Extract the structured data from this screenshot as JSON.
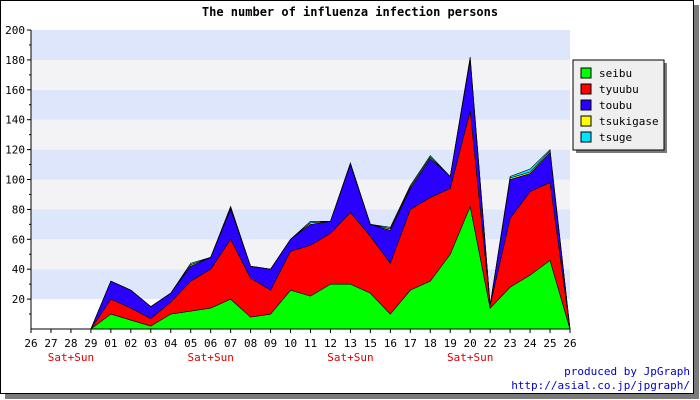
{
  "chart_data": {
    "type": "area",
    "stacked": true,
    "title": "The number of influenza infection persons",
    "categories": [
      "26",
      "27",
      "28",
      "29",
      "01",
      "02",
      "03",
      "04",
      "05",
      "06",
      "07",
      "08",
      "09",
      "10",
      "11",
      "12",
      "13",
      "15",
      "16",
      "17",
      "18",
      "19",
      "20",
      "22",
      "23",
      "24",
      "25",
      "26"
    ],
    "weekend_labels": [
      "Sat+Sun",
      "Sat+Sun",
      "Sat+Sun",
      "Sat+Sun"
    ],
    "weekend_under": [
      "28",
      "06",
      "13",
      "20"
    ],
    "ylim": [
      0,
      200
    ],
    "yticks": [
      20,
      40,
      60,
      80,
      100,
      120,
      140,
      160,
      180,
      200
    ],
    "grid": true,
    "legend_position": "right",
    "series": [
      {
        "name": "seibu",
        "color": "#00ff00",
        "values": [
          0,
          0,
          0,
          0,
          10,
          6,
          2,
          10,
          12,
          14,
          20,
          8,
          10,
          26,
          22,
          30,
          30,
          24,
          10,
          26,
          32,
          50,
          82,
          14,
          28,
          36,
          46,
          0
        ]
      },
      {
        "name": "tyuubu",
        "color": "#ff0000",
        "values": [
          0,
          0,
          0,
          0,
          10,
          8,
          5,
          8,
          20,
          26,
          40,
          26,
          16,
          26,
          34,
          34,
          48,
          38,
          34,
          54,
          56,
          44,
          64,
          2,
          46,
          56,
          52,
          0
        ]
      },
      {
        "name": "toubu",
        "color": "#2a00ff",
        "values": [
          0,
          0,
          0,
          0,
          12,
          12,
          8,
          6,
          10,
          8,
          20,
          8,
          14,
          8,
          14,
          8,
          32,
          8,
          22,
          14,
          26,
          8,
          34,
          0,
          26,
          12,
          20,
          0
        ]
      },
      {
        "name": "tsukigase",
        "color": "#ffff00",
        "values": [
          0,
          0,
          0,
          0,
          0,
          0,
          0,
          0,
          1,
          0,
          1,
          0,
          0,
          0,
          1,
          0,
          1,
          0,
          1,
          1,
          1,
          0,
          1,
          0,
          1,
          1,
          1,
          0
        ]
      },
      {
        "name": "tsuge",
        "color": "#00e5ff",
        "values": [
          0,
          0,
          0,
          0,
          0,
          0,
          0,
          0,
          1,
          0,
          1,
          0,
          0,
          0,
          1,
          0,
          0,
          0,
          1,
          1,
          1,
          0,
          1,
          0,
          1,
          2,
          1,
          0
        ]
      }
    ]
  },
  "footer": {
    "line1": "produced by JpGraph",
    "line2": "http://asial.co.jp/jpgraph/"
  }
}
